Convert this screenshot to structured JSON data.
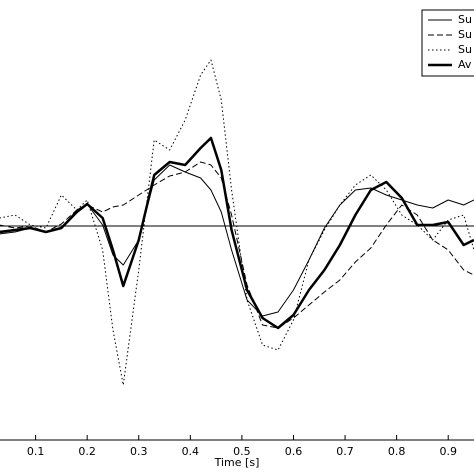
{
  "chart_data": {
    "type": "line",
    "x_label": "Time [s]",
    "x": [
      0.03,
      0.06,
      0.09,
      0.12,
      0.15,
      0.18,
      0.2,
      0.23,
      0.25,
      0.27,
      0.3,
      0.33,
      0.36,
      0.39,
      0.42,
      0.44,
      0.46,
      0.48,
      0.51,
      0.54,
      0.57,
      0.6,
      0.63,
      0.66,
      0.69,
      0.72,
      0.75,
      0.78,
      0.81,
      0.84,
      0.87,
      0.9,
      0.93,
      0.95
    ],
    "series": [
      {
        "name": "Su",
        "color": "#000000",
        "dash": "solid",
        "width": 1,
        "values": [
          -0.08,
          -0.06,
          -0.02,
          -0.06,
          -0.02,
          0.16,
          0.22,
          0.01,
          -0.29,
          -0.39,
          -0.14,
          0.46,
          0.61,
          0.54,
          0.48,
          0.36,
          0.14,
          -0.24,
          -0.74,
          -0.9,
          -0.86,
          -0.64,
          -0.34,
          -0.02,
          0.21,
          0.36,
          0.38,
          0.31,
          0.26,
          0.21,
          0.18,
          0.26,
          0.21,
          0.26
        ]
      },
      {
        "name": "Su",
        "color": "#000000",
        "dash": "dashed",
        "width": 1,
        "values": [
          0.01,
          -0.02,
          0,
          -0.06,
          0.02,
          0.16,
          0.21,
          0.14,
          0.19,
          0.21,
          0.31,
          0.41,
          0.5,
          0.54,
          0.64,
          0.61,
          0.48,
          0.11,
          -0.59,
          -0.99,
          -1.02,
          -0.92,
          -0.79,
          -0.66,
          -0.54,
          -0.36,
          -0.22,
          0.01,
          0.21,
          0.11,
          -0.14,
          -0.24,
          -0.44,
          -0.49
        ]
      },
      {
        "name": "Su",
        "color": "#000000",
        "dash": "dotted",
        "width": 1,
        "values": [
          0.08,
          0.11,
          0.01,
          -0.02,
          0.31,
          0.16,
          0.26,
          -0.24,
          -1.04,
          -1.59,
          -0.44,
          0.86,
          0.76,
          1.06,
          1.51,
          1.66,
          1.26,
          0.36,
          -0.74,
          -1.19,
          -1.24,
          -0.94,
          -0.34,
          -0.04,
          0.21,
          0.41,
          0.51,
          0.36,
          0.11,
          0.01,
          -0.14,
          0.06,
          0.11,
          -0.24
        ]
      },
      {
        "name": "Av",
        "color": "#000000",
        "dash": "solid",
        "width": 2.5,
        "values": [
          -0.06,
          -0.04,
          -0.02,
          -0.06,
          -0.02,
          0.14,
          0.22,
          0.08,
          -0.24,
          -0.6,
          -0.14,
          0.51,
          0.64,
          0.61,
          0.78,
          0.88,
          0.56,
          -0.04,
          -0.64,
          -0.92,
          -1.02,
          -0.89,
          -0.64,
          -0.44,
          -0.19,
          0.11,
          0.36,
          0.44,
          0.28,
          0.01,
          0.01,
          0.04,
          -0.19,
          -0.14
        ]
      }
    ],
    "reference_line": 0,
    "xlim": [
      0.031,
      0.95
    ],
    "xticks": [
      0.1,
      0.2,
      0.3,
      0.4,
      0.5,
      0.6,
      0.7,
      0.8,
      0.9
    ],
    "ylim": [
      -2.14,
      2.26
    ],
    "legend": "upper right"
  }
}
